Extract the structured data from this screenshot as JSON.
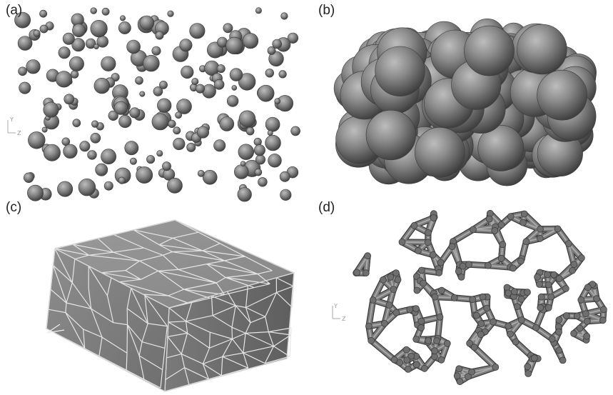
{
  "panels": [
    {
      "label": "(a)",
      "content": "sparse-spheres"
    },
    {
      "label": "(b)",
      "content": "packed-spheres"
    },
    {
      "label": "(c)",
      "content": "voronoi-cube"
    },
    {
      "label": "(d)",
      "content": "strut-network"
    }
  ],
  "axis_triad": {
    "y": "Y",
    "z": "Z"
  },
  "colors": {
    "background": "#ffffff",
    "sphere_fill": "#808080",
    "sphere_stroke": "#3a3a3a",
    "cube_face": "#8a8a8a",
    "cell_edges": "#e0e0e0",
    "strut": "#7c7c7c"
  }
}
